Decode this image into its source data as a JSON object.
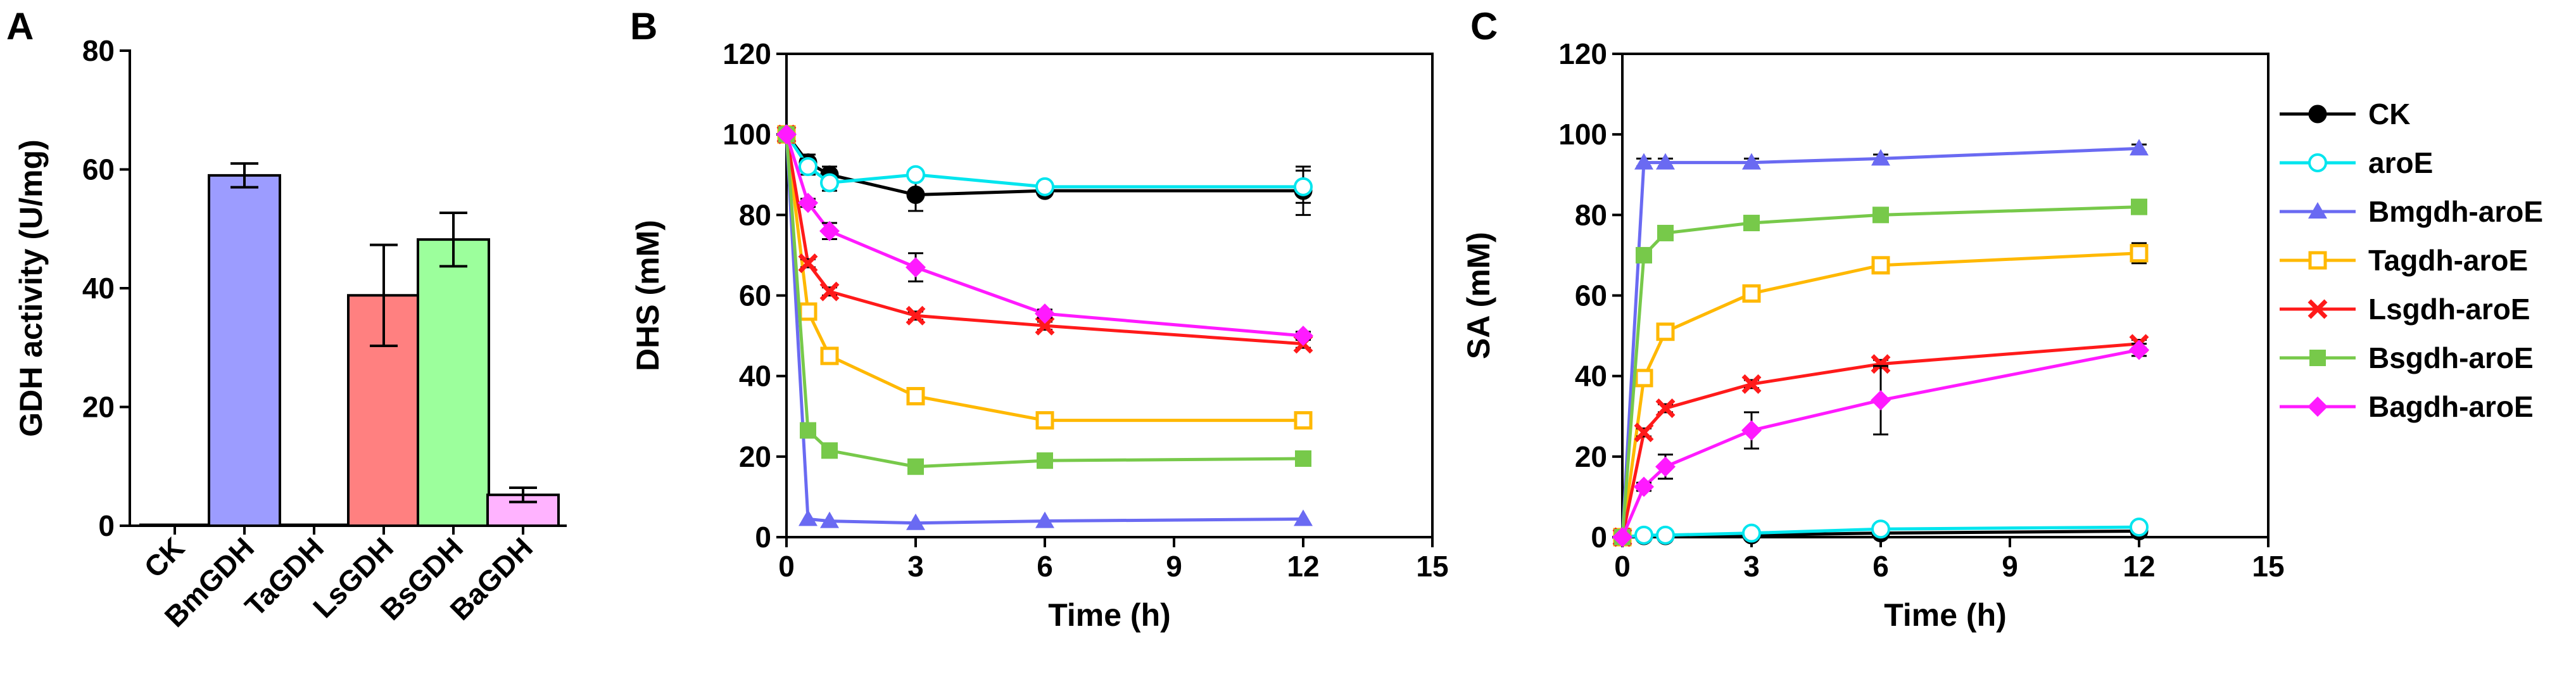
{
  "panels": {
    "A": "A",
    "B": "B",
    "C": "C"
  },
  "chart_data": [
    {
      "id": "A",
      "type": "bar",
      "title": "",
      "xlabel": "",
      "ylabel": "GDH activity (U/mg)",
      "ylim": [
        0,
        80
      ],
      "yticks": [
        0,
        20,
        40,
        60,
        80
      ],
      "categories": [
        "CK",
        "BmGDH",
        "TaGDH",
        "LsGDH",
        "BsGDH",
        "BaGDH"
      ],
      "values": [
        0,
        59,
        0,
        38.8,
        48.2,
        5.2
      ],
      "errors": [
        0,
        2,
        0,
        8.5,
        4.5,
        1.2
      ],
      "colors": [
        "#ffffff",
        "#9c9cff",
        "#ffffff",
        "#ff8080",
        "#9cff9c",
        "#ffb3ff"
      ]
    },
    {
      "id": "B",
      "type": "line",
      "xlabel": "Time (h)",
      "ylabel": "DHS (mM)",
      "xlim": [
        0,
        15
      ],
      "ylim": [
        0,
        120
      ],
      "xticks": [
        0,
        3,
        6,
        9,
        12,
        15
      ],
      "yticks": [
        0,
        20,
        40,
        60,
        80,
        100,
        120
      ],
      "series": [
        {
          "name": "CK",
          "color": "#000000",
          "marker": "circle-filled",
          "x": [
            0,
            0.5,
            1,
            3,
            6,
            12
          ],
          "y": [
            100,
            93,
            90,
            85,
            86,
            86
          ],
          "err": [
            0,
            2,
            2,
            4,
            1,
            6
          ]
        },
        {
          "name": "aroE",
          "color": "#00e5ee",
          "marker": "circle-open",
          "x": [
            0,
            0.5,
            1,
            3,
            6,
            12
          ],
          "y": [
            100,
            92,
            88,
            90,
            87,
            87
          ],
          "err": [
            0,
            2,
            2,
            1,
            1,
            4
          ]
        },
        {
          "name": "Bmgdh-aroE",
          "color": "#6a6af2",
          "marker": "triangle",
          "x": [
            0,
            0.5,
            1,
            3,
            6,
            12
          ],
          "y": [
            100,
            4.5,
            4,
            3.5,
            4,
            4.5
          ],
          "err": [
            0,
            0.5,
            0.5,
            0.5,
            0.5,
            0.5
          ]
        },
        {
          "name": "Tagdh-aroE",
          "color": "#ffb800",
          "marker": "square-open",
          "x": [
            0,
            0.5,
            1,
            3,
            6,
            12
          ],
          "y": [
            100,
            56,
            45,
            35,
            29,
            29
          ],
          "err": [
            0,
            1,
            1,
            1,
            1,
            1
          ]
        },
        {
          "name": "Lsgdh-aroE",
          "color": "#ff1a1a",
          "marker": "x",
          "x": [
            0,
            0.5,
            1,
            3,
            6,
            12
          ],
          "y": [
            100,
            68,
            61,
            55,
            52.5,
            48
          ],
          "err": [
            0,
            1,
            1,
            1,
            1,
            1
          ]
        },
        {
          "name": "Bsgdh-aroE",
          "color": "#77c94a",
          "marker": "square",
          "x": [
            0,
            0.5,
            1,
            3,
            6,
            12
          ],
          "y": [
            100,
            26.5,
            21.5,
            17.5,
            19,
            19.5
          ],
          "err": [
            0,
            1,
            1,
            1,
            1,
            1
          ]
        },
        {
          "name": "Bagdh-aroE",
          "color": "#ff1aff",
          "marker": "diamond",
          "x": [
            0,
            0.5,
            1,
            3,
            6,
            12
          ],
          "y": [
            100,
            83,
            76,
            67,
            55.5,
            50
          ],
          "err": [
            0,
            1,
            2,
            3.5,
            1,
            1
          ]
        }
      ]
    },
    {
      "id": "C",
      "type": "line",
      "xlabel": "Time (h)",
      "ylabel": "SA (mM)",
      "xlim": [
        0,
        15
      ],
      "ylim": [
        0,
        120
      ],
      "xticks": [
        0,
        3,
        6,
        9,
        12,
        15
      ],
      "yticks": [
        0,
        20,
        40,
        60,
        80,
        100,
        120
      ],
      "series": [
        {
          "name": "CK",
          "color": "#000000",
          "marker": "circle-filled",
          "x": [
            0,
            0.5,
            1,
            3,
            6,
            12
          ],
          "y": [
            0,
            0.3,
            0.3,
            0.5,
            1,
            1.5
          ],
          "err": [
            0,
            0,
            0,
            0,
            0.5,
            0.5
          ]
        },
        {
          "name": "aroE",
          "color": "#00e5ee",
          "marker": "circle-open",
          "x": [
            0,
            0.5,
            1,
            3,
            6,
            12
          ],
          "y": [
            0,
            0.5,
            0.5,
            1,
            2,
            2.5
          ],
          "err": [
            0,
            0,
            0,
            0,
            0.5,
            0.5
          ]
        },
        {
          "name": "Bmgdh-aroE",
          "color": "#6a6af2",
          "marker": "triangle",
          "x": [
            0,
            0.5,
            1,
            3,
            6,
            12
          ],
          "y": [
            0,
            93,
            93,
            93,
            94,
            96.5
          ],
          "err": [
            0,
            1,
            1,
            1,
            1,
            1
          ]
        },
        {
          "name": "Tagdh-aroE",
          "color": "#ffb800",
          "marker": "square-open",
          "x": [
            0,
            0.5,
            1,
            3,
            6,
            12
          ],
          "y": [
            0,
            39.5,
            51,
            60.5,
            67.5,
            70.5
          ],
          "err": [
            0,
            1,
            1.5,
            1,
            1.5,
            2.5
          ]
        },
        {
          "name": "Lsgdh-aroE",
          "color": "#ff1a1a",
          "marker": "x",
          "x": [
            0,
            0.5,
            1,
            3,
            6,
            12
          ],
          "y": [
            0,
            26,
            32,
            38,
            43,
            48
          ],
          "err": [
            0,
            1,
            1,
            1,
            1,
            1
          ]
        },
        {
          "name": "Bsgdh-aroE",
          "color": "#77c94a",
          "marker": "square",
          "x": [
            0,
            0.5,
            1,
            3,
            6,
            12
          ],
          "y": [
            0,
            70,
            75.5,
            78,
            80,
            82
          ],
          "err": [
            0,
            1,
            1,
            1,
            1,
            1
          ]
        },
        {
          "name": "Bagdh-aroE",
          "color": "#ff1aff",
          "marker": "diamond",
          "x": [
            0,
            0.5,
            1,
            3,
            6,
            12
          ],
          "y": [
            0,
            12.5,
            17.5,
            26.5,
            34,
            46.5
          ],
          "err": [
            0,
            1,
            3,
            4.5,
            8.5,
            1.5
          ]
        }
      ]
    }
  ],
  "legend": {
    "placement": "right",
    "items": [
      "CK",
      "aroE",
      "Bmgdh-aroE",
      "Tagdh-aroE",
      "Lsgdh-aroE",
      "Bsgdh-aroE",
      "Bagdh-aroE"
    ]
  }
}
